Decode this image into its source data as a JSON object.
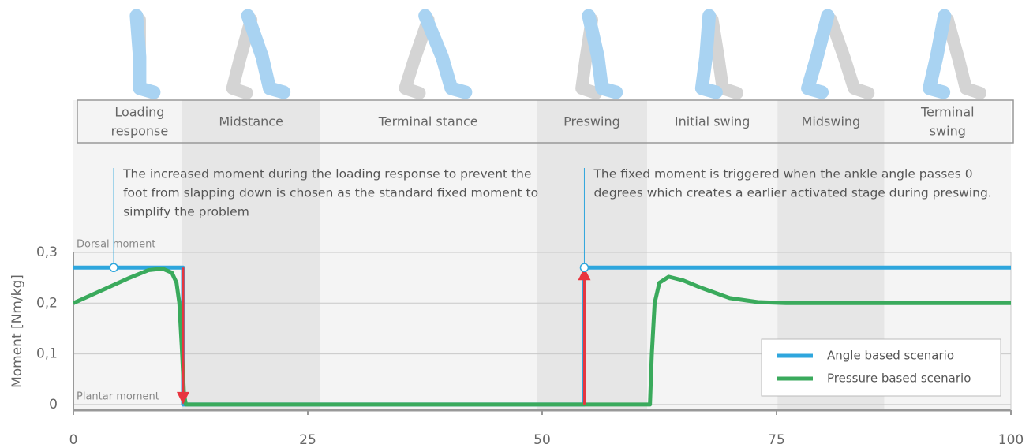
{
  "chart_data": {
    "type": "line",
    "ylabel": "Moment [Nm/kg]",
    "xlim": [
      0,
      100
    ],
    "ylim": [
      -0.011,
      0.3
    ],
    "xticks": [
      0,
      25,
      50,
      75,
      100
    ],
    "yticks": [
      0,
      {
        "value": 0.1,
        "label": "0,1"
      },
      {
        "value": 0.2,
        "label": "0,2"
      },
      {
        "value": 0.3,
        "label": "0,3"
      }
    ],
    "grid": true,
    "legend": "lower right",
    "phases": [
      {
        "label": [
          "Loading",
          "response"
        ],
        "start": 0,
        "end": 11.6
      },
      {
        "label": [
          "Midstance"
        ],
        "start": 11.6,
        "end": 26.3
      },
      {
        "label": [
          "Terminal stance"
        ],
        "start": 26.3,
        "end": 49.4
      },
      {
        "label": [
          "Preswing"
        ],
        "start": 49.4,
        "end": 61.2
      },
      {
        "label": [
          "Initial swing"
        ],
        "start": 61.2,
        "end": 75.1
      },
      {
        "label": [
          "Midswing"
        ],
        "start": 75.1,
        "end": 86.5
      },
      {
        "label": [
          "Terminal",
          "swing"
        ],
        "start": 86.5,
        "end": 100
      }
    ],
    "region_labels": [
      {
        "text": "Dorsal moment",
        "y": 0.3
      },
      {
        "text": "Plantar moment",
        "y": 0
      }
    ],
    "annotations": [
      {
        "x": 4.3,
        "y": 0.27,
        "lines": [
          "The increased moment during the loading response to prevent the",
          "foot from slapping down is chosen as the standard fixed moment to",
          "simplify the problem"
        ]
      },
      {
        "x": 54.5,
        "y": 0.27,
        "lines": [
          "The fixed moment is triggered when the ankle angle passes 0",
          "degrees which creates a earlier activated stage during preswing."
        ]
      }
    ],
    "arrows": [
      {
        "x": 11.7,
        "from": 0.27,
        "to": 0
      },
      {
        "x": 54.5,
        "from": 0,
        "to": 0.27
      }
    ],
    "arrow_color": "#e8353f",
    "series": [
      {
        "name": "Angle based scenario",
        "color": "#2ea6dd",
        "x": [
          0,
          11.7,
          11.7,
          54.5,
          54.5,
          100
        ],
        "values": [
          0.27,
          0.27,
          0,
          0,
          0.27,
          0.27
        ]
      },
      {
        "name": "Pressure based scenario",
        "color": "#3aaa5c",
        "x": [
          0,
          3,
          6,
          8,
          9.5,
          10.5,
          11,
          11.3,
          11.6,
          11.8,
          12,
          61.5,
          61.7,
          62,
          62.5,
          63.5,
          65,
          67,
          70,
          73,
          76,
          100
        ],
        "values": [
          0.2,
          0.225,
          0.25,
          0.265,
          0.268,
          0.26,
          0.24,
          0.2,
          0.1,
          0.02,
          0,
          0,
          0.1,
          0.2,
          0.24,
          0.252,
          0.245,
          0.23,
          0.21,
          0.202,
          0.2,
          0.2
        ]
      }
    ]
  }
}
